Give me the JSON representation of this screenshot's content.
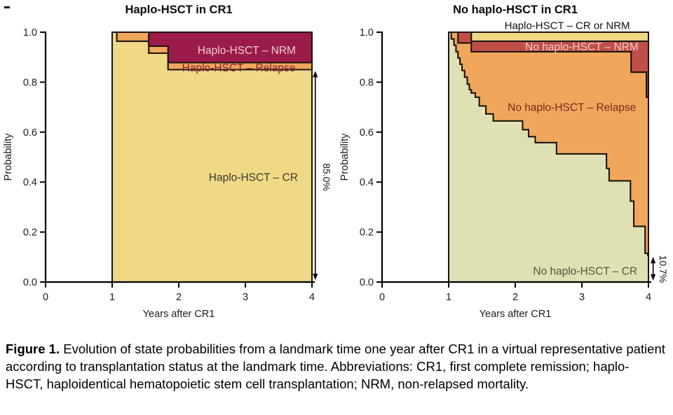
{
  "figure": {
    "caption_label": "Figure 1.",
    "caption_text": " Evolution of state probabilities from a landmark time one year after CR1 in a virtual representative patient according to transplantation status at the landmark time. Abbreviations: CR1, first complete remission; haplo-HSCT, haploidentical hematopoietic stem cell transplantation; NRM, non-relapsed mortality."
  },
  "chart_data": [
    {
      "type": "area",
      "subtype": "stacked-step-state-probabilities",
      "title": "Haplo-HSCT in CR1",
      "xlabel": "Years after CR1",
      "ylabel": "Probability",
      "xlim": [
        0,
        4
      ],
      "ylim": [
        0,
        1
      ],
      "xticks": [
        "0",
        "1",
        "2",
        "3",
        "4"
      ],
      "yticks": [
        "0.0",
        "0.2",
        "0.4",
        "0.6",
        "0.8",
        "1.0"
      ],
      "grid": false,
      "curve_start_year": 1,
      "layers": [
        {
          "name": "Haplo-HSCT – CR",
          "color": "#efd985",
          "top_steps": [
            [
              1,
              1.0
            ],
            [
              1.07,
              0.964
            ],
            [
              1.55,
              0.916
            ],
            [
              1.84,
              0.85
            ]
          ]
        },
        {
          "name": "Haplo-HSCT – Relapse",
          "color": "#f0a75c",
          "top_steps": [
            [
              1,
              1.0
            ],
            [
              1.55,
              0.944
            ],
            [
              1.84,
              0.878
            ]
          ]
        },
        {
          "name": "Haplo-HSCT – NRM",
          "color": "#9b1b4b",
          "top_steps": [
            [
              1,
              1.0
            ]
          ]
        }
      ],
      "labels": [
        {
          "text": "Haplo-HSCT – NRM",
          "x": 3.02,
          "y": 0.928,
          "color": "#f0cdd3",
          "size": 15.5
        },
        {
          "text": "Haplo-HSCT – Relapse",
          "x": 2.9,
          "y": 0.859,
          "color": "#8a1f3f",
          "size": 15.5
        },
        {
          "text": "Haplo-HSCT – CR",
          "x": 3.12,
          "y": 0.42,
          "color": "#3d3a30",
          "size": 15.5
        }
      ],
      "annotation": {
        "text": "85.0%",
        "arrow_x": 4.05,
        "arrow_from": 0.008,
        "arrow_to": 0.845,
        "text_x": 4.22,
        "text_y": 0.42
      }
    },
    {
      "type": "area",
      "subtype": "stacked-step-state-probabilities",
      "title": "No haplo-HSCT in CR1",
      "xlabel": "Years after CR1",
      "ylabel": "Probability",
      "xlim": [
        0,
        4
      ],
      "ylim": [
        0,
        1
      ],
      "xticks": [
        "0",
        "1",
        "2",
        "3",
        "4"
      ],
      "yticks": [
        "0.0",
        "0.2",
        "0.4",
        "0.6",
        "0.8",
        "1.0"
      ],
      "grid": false,
      "curve_start_year": 1,
      "layers": [
        {
          "name": "No haplo-HSCT – CR",
          "color": "#dfe1b5",
          "top_steps": [
            [
              1,
              1.0
            ],
            [
              1.04,
              0.973
            ],
            [
              1.08,
              0.948
            ],
            [
              1.11,
              0.922
            ],
            [
              1.14,
              0.897
            ],
            [
              1.17,
              0.872
            ],
            [
              1.2,
              0.847
            ],
            [
              1.24,
              0.82
            ],
            [
              1.28,
              0.792
            ],
            [
              1.31,
              0.77
            ],
            [
              1.34,
              0.757
            ],
            [
              1.4,
              0.74
            ],
            [
              1.46,
              0.705
            ],
            [
              1.56,
              0.673
            ],
            [
              1.67,
              0.645
            ],
            [
              2.11,
              0.61
            ],
            [
              2.2,
              0.582
            ],
            [
              2.3,
              0.558
            ],
            [
              2.62,
              0.513
            ],
            [
              3.37,
              0.455
            ],
            [
              3.41,
              0.405
            ],
            [
              3.73,
              0.324
            ],
            [
              3.78,
              0.223
            ],
            [
              3.95,
              0.115
            ],
            [
              3.99,
              0.107
            ]
          ]
        },
        {
          "name": "No haplo-HSCT – Relapse",
          "color": "#f0a75c",
          "top_steps": [
            [
              1,
              1.0
            ],
            [
              1.14,
              0.957
            ],
            [
              1.34,
              0.922
            ],
            [
              3.74,
              0.84
            ],
            [
              3.97,
              0.74
            ]
          ]
        },
        {
          "name": "No haplo-HSCT – NRM",
          "color": "#c14f48",
          "top_steps": [
            [
              1,
              1.0
            ],
            [
              1.34,
              0.964
            ]
          ]
        },
        {
          "name": "Haplo-HSCT – CR or NRM",
          "color": "#efd985",
          "top_steps": [
            [
              1,
              1.0
            ]
          ]
        }
      ],
      "labels": [
        {
          "text": "Haplo-HSCT – CR or NRM",
          "x": 2.78,
          "y": 1.028,
          "color": "#111111",
          "size": 15
        },
        {
          "text": "No haplo-HSCT – NRM",
          "x": 3.0,
          "y": 0.942,
          "color": "#f2cbc7",
          "size": 15.5
        },
        {
          "text": "No haplo-HSCT – Relapse",
          "x": 2.85,
          "y": 0.7,
          "color": "#7c2a20",
          "size": 15.5
        },
        {
          "text": "No haplo-HSCT – CR",
          "x": 3.05,
          "y": 0.045,
          "color": "#55543a",
          "size": 15.5
        }
      ],
      "annotation": {
        "text": "10.7%",
        "arrow_x": 4.07,
        "arrow_from": 0.006,
        "arrow_to": 0.1,
        "text_x": 4.22,
        "text_y": 0.052
      }
    }
  ]
}
